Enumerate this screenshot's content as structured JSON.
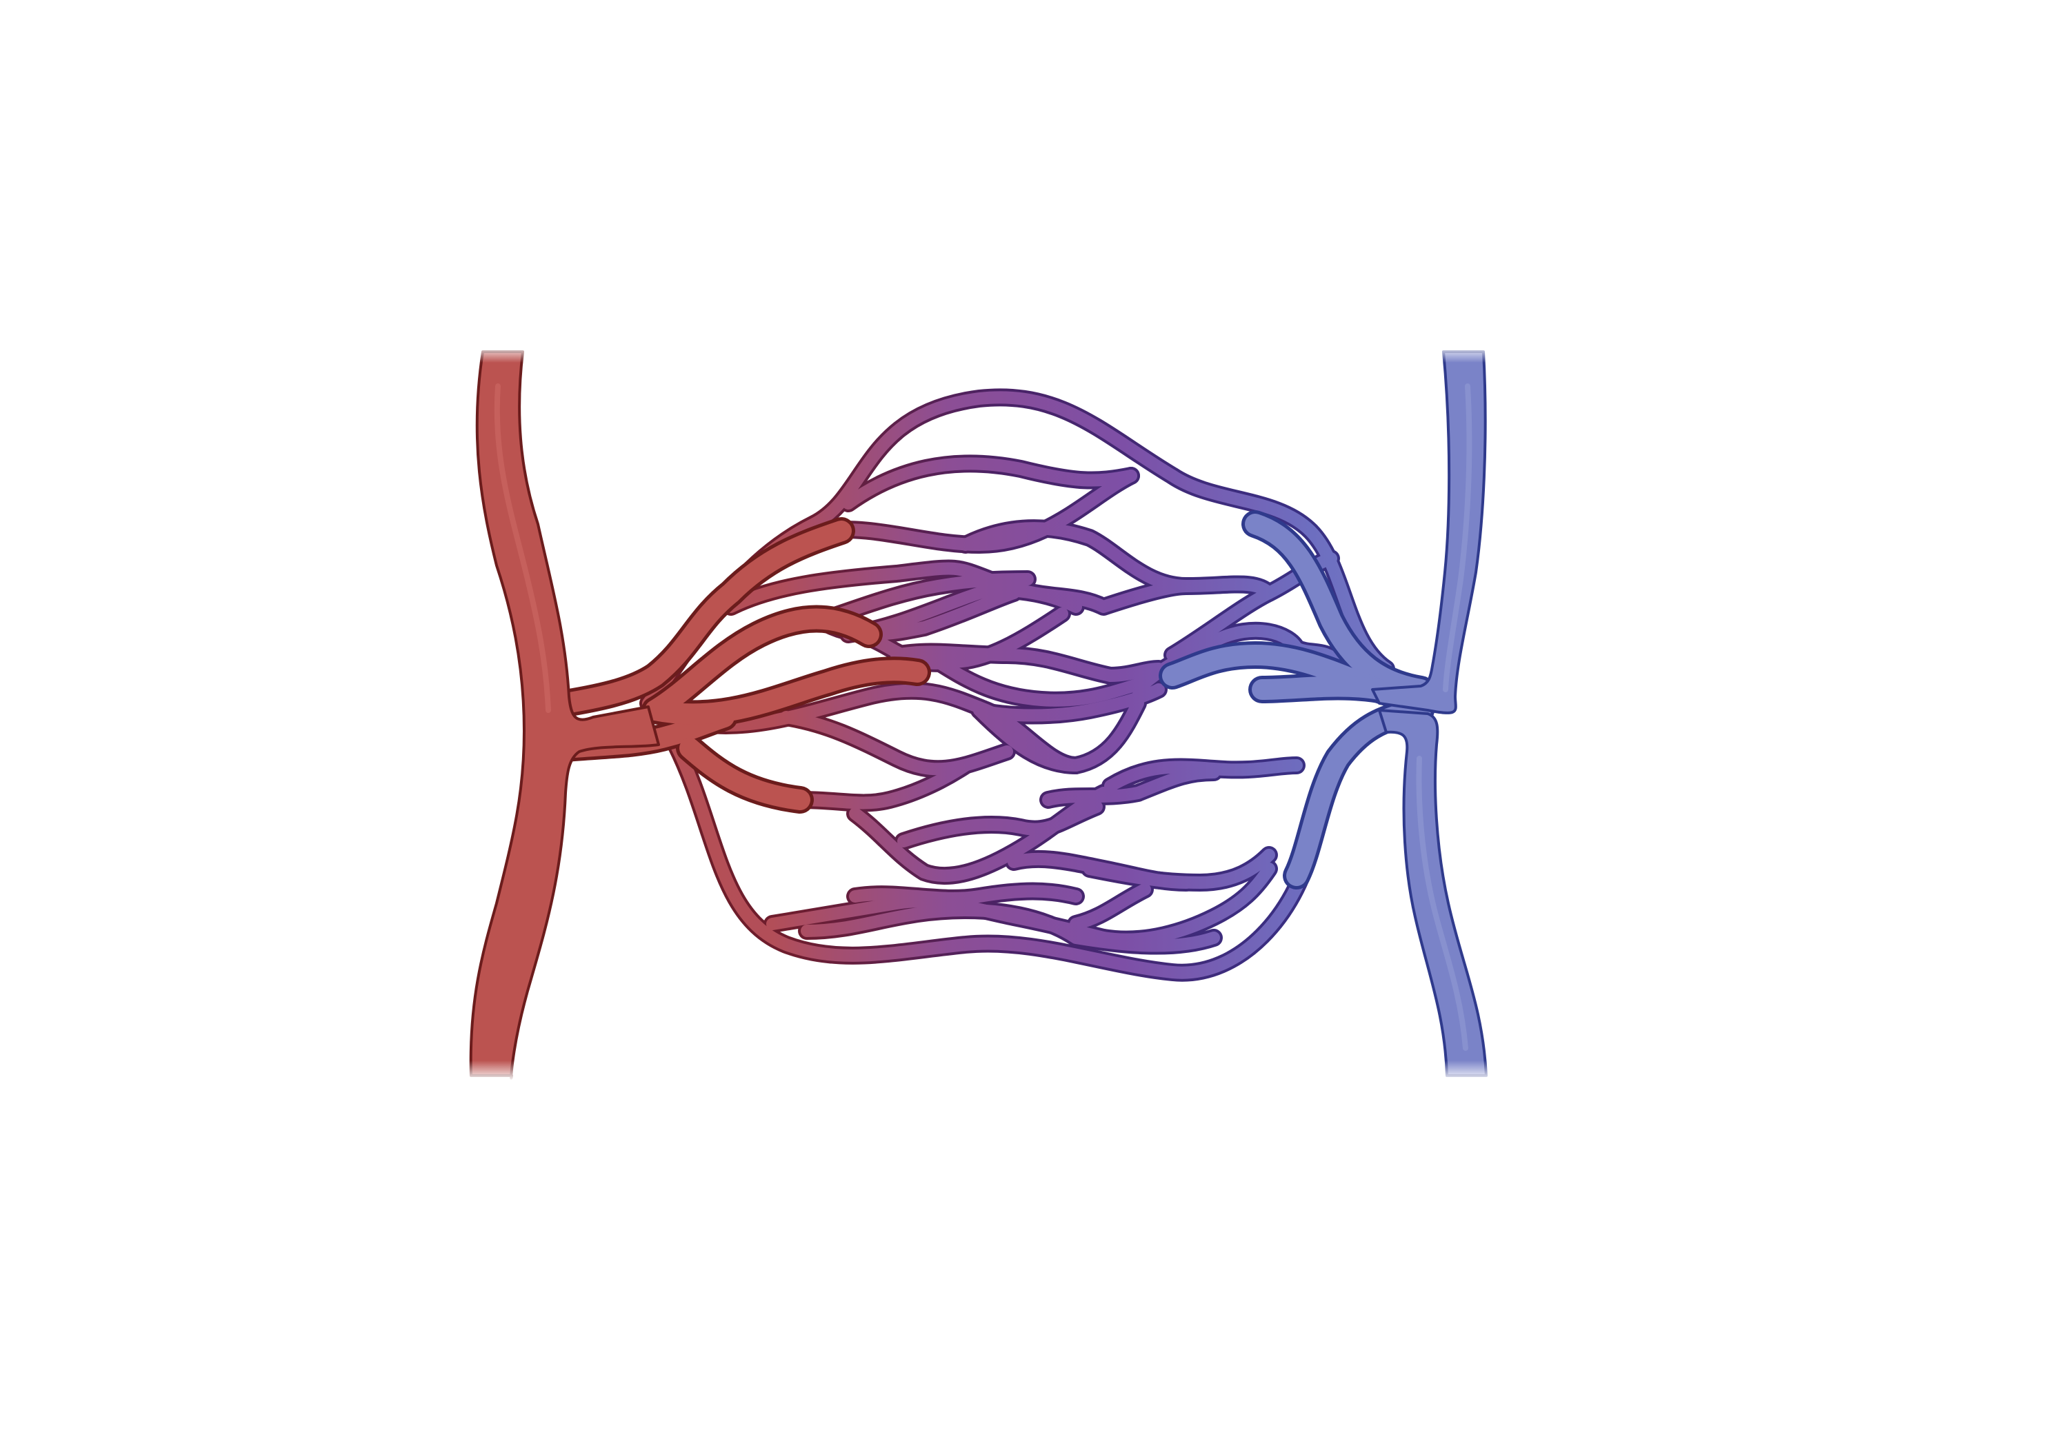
{
  "diagram": {
    "colors": {
      "background": "#ffffff",
      "artery_fill": "#bb5350",
      "artery_outline": "#6b1c1c",
      "vein_fill": "#7a83c8",
      "vein_outline": "#2f3a8c",
      "capillary_mid_fill": "#8a55a8",
      "capillary_mid_outline": "#4a2266"
    },
    "parts": [
      {
        "name": "artery",
        "icon": "artery-vessel-icon",
        "color": "#bb5350"
      },
      {
        "name": "capillary-bed",
        "icon": "capillary-network-icon",
        "color": "#8a55a8"
      },
      {
        "name": "vein",
        "icon": "vein-vessel-icon",
        "color": "#7a83c8"
      }
    ]
  }
}
